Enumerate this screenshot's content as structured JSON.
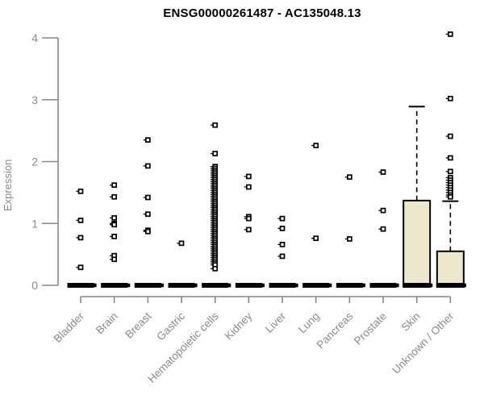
{
  "chart_data": {
    "type": "boxplot",
    "title": "ENSG00000261487 - AC135048.13",
    "ylabel": "Expression",
    "ylim": [
      0,
      4
    ],
    "yticks": [
      0,
      1,
      2,
      3,
      4
    ],
    "grid": false,
    "legend": "none",
    "colors": {
      "box_fill": "#EDE7CB",
      "box_stroke": "#000000",
      "median": "#000000",
      "axis": "#878787",
      "tick_label": "#8a8a8a",
      "point_stroke": "#000000",
      "point_fill": "#ffffff",
      "title": "#000000"
    },
    "categories": [
      "Bladder",
      "Brain",
      "Breast",
      "Gastric",
      "Hematopoietic cells",
      "Kidney",
      "Liver",
      "Lung",
      "Pancreas",
      "Prostate",
      "Skin",
      "Unknown / Other"
    ],
    "boxes": [
      {
        "category": "Bladder",
        "q1": 0,
        "median": 0,
        "q3": 0,
        "whisker_low": 0,
        "whisker_high": 0,
        "outliers": [
          1.52,
          1.05,
          0.77,
          0.29
        ]
      },
      {
        "category": "Brain",
        "q1": 0,
        "median": 0,
        "q3": 0,
        "whisker_low": 0,
        "whisker_high": 0,
        "outliers": [
          1.62,
          1.43,
          1.09,
          1.0,
          0.98,
          0.79,
          0.48,
          0.42
        ]
      },
      {
        "category": "Breast",
        "q1": 0,
        "median": 0,
        "q3": 0,
        "whisker_low": 0,
        "whisker_high": 0,
        "outliers": [
          2.35,
          1.93,
          1.42,
          1.15,
          0.89,
          0.87
        ]
      },
      {
        "category": "Gastric",
        "q1": 0,
        "median": 0,
        "q3": 0,
        "whisker_low": 0,
        "whisker_high": 0,
        "outliers": [
          0.68
        ]
      },
      {
        "category": "Hematopoietic cells",
        "q1": 0,
        "median": 0,
        "q3": 0,
        "whisker_low": 0,
        "whisker_high": 0,
        "outliers": [
          2.59,
          2.13,
          1.92,
          1.89,
          1.86,
          1.83,
          1.8,
          1.77,
          1.74,
          1.71,
          1.68,
          1.65,
          1.62,
          1.59,
          1.56,
          1.53,
          1.5,
          1.47,
          1.44,
          1.41,
          1.38,
          1.35,
          1.32,
          1.29,
          1.26,
          1.23,
          1.2,
          1.17,
          1.14,
          1.11,
          1.08,
          1.05,
          1.02,
          0.99,
          0.96,
          0.93,
          0.9,
          0.87,
          0.84,
          0.81,
          0.78,
          0.75,
          0.72,
          0.69,
          0.66,
          0.63,
          0.6,
          0.57,
          0.54,
          0.51,
          0.48,
          0.45,
          0.42,
          0.39,
          0.36,
          0.33,
          0.27
        ]
      },
      {
        "category": "Kidney",
        "q1": 0,
        "median": 0,
        "q3": 0,
        "whisker_low": 0,
        "whisker_high": 0,
        "outliers": [
          1.76,
          1.59,
          1.11,
          1.08,
          0.9
        ]
      },
      {
        "category": "Liver",
        "q1": 0,
        "median": 0,
        "q3": 0,
        "whisker_low": 0,
        "whisker_high": 0,
        "outliers": [
          1.08,
          0.92,
          0.66,
          0.47
        ]
      },
      {
        "category": "Lung",
        "q1": 0,
        "median": 0,
        "q3": 0,
        "whisker_low": 0,
        "whisker_high": 0,
        "outliers": [
          2.26,
          0.76
        ]
      },
      {
        "category": "Pancreas",
        "q1": 0,
        "median": 0,
        "q3": 0,
        "whisker_low": 0,
        "whisker_high": 0,
        "outliers": [
          1.75,
          0.75
        ]
      },
      {
        "category": "Prostate",
        "q1": 0,
        "median": 0,
        "q3": 0,
        "whisker_low": 0,
        "whisker_high": 0,
        "outliers": [
          1.83,
          1.21,
          0.91
        ]
      },
      {
        "category": "Skin",
        "q1": 0,
        "median": 0,
        "q3": 1.37,
        "whisker_low": 0,
        "whisker_high": 2.89,
        "outliers": []
      },
      {
        "category": "Unknown / Other",
        "q1": 0,
        "median": 0,
        "q3": 0.55,
        "whisker_low": 0,
        "whisker_high": 1.36,
        "outliers": [
          4.06,
          3.02,
          2.41,
          2.06,
          1.84,
          1.74,
          1.7,
          1.66,
          1.62,
          1.58,
          1.54,
          1.5,
          1.46,
          1.43
        ]
      }
    ]
  }
}
